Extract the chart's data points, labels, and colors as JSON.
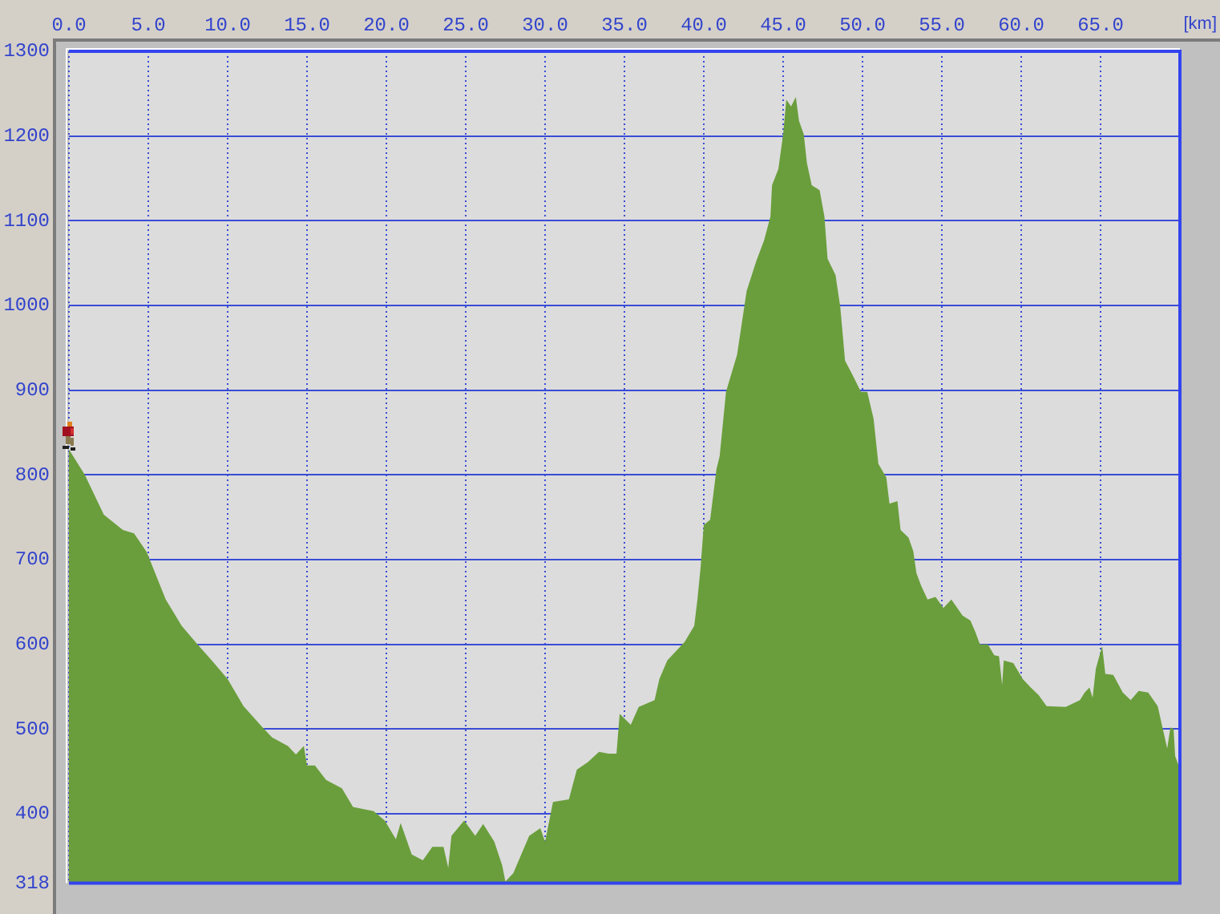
{
  "chart_data": {
    "type": "area",
    "xlabel": "[km]",
    "x": [
      0,
      1.0,
      2.2,
      3.4,
      4.1,
      4.9,
      6.1,
      7.1,
      8.1,
      9.0,
      10.0,
      11.0,
      12.2,
      12.8,
      13.8,
      14.3,
      14.8,
      15.0,
      15.5,
      16.2,
      17.2,
      17.9,
      19.2,
      19.9,
      20.6,
      20.9,
      21.6,
      22.3,
      22.9,
      23.6,
      23.9,
      24.1,
      24.9,
      25.6,
      26.1,
      26.8,
      27.3,
      27.5,
      28.0,
      29.0,
      29.7,
      30.0,
      30.5,
      31.5,
      32.0,
      32.7,
      33.4,
      34.0,
      34.5,
      34.7,
      35.4,
      35.9,
      36.4,
      36.9,
      37.2,
      37.7,
      38.8,
      39.4,
      39.6,
      39.8,
      40.0,
      40.4,
      40.8,
      41.0,
      41.4,
      42.1,
      42.7,
      43.3,
      43.8,
      44.2,
      44.3,
      44.7,
      45.0,
      45.2,
      45.5,
      45.8,
      46.0,
      46.3,
      46.5,
      46.8,
      47.3,
      47.6,
      47.8,
      48.3,
      48.6,
      48.9,
      49.4,
      49.9,
      50.3,
      50.7,
      51.0,
      51.5,
      51.7,
      52.2,
      52.4,
      52.9,
      53.2,
      53.4,
      53.7,
      54.1,
      54.6,
      55.1,
      55.6,
      56.3,
      56.8,
      57.1,
      57.4,
      57.9,
      58.3,
      58.6,
      58.8,
      58.9,
      59.5,
      60.1,
      60.6,
      61.1,
      61.6,
      62.8,
      63.7,
      64.0,
      64.3,
      64.5,
      64.7,
      65.1,
      65.3,
      65.8,
      66.4,
      66.9,
      67.4,
      68.0,
      68.6,
      68.9,
      69.2,
      69.4,
      69.6,
      69.7,
      69.9
    ],
    "values": [
      830,
      800,
      753,
      735,
      731,
      709,
      653,
      622,
      600,
      581,
      559,
      527,
      502,
      490,
      480,
      470,
      480,
      457,
      457,
      440,
      430,
      408,
      403,
      392,
      370,
      389,
      352,
      345,
      361,
      361,
      336,
      374,
      392,
      374,
      388,
      367,
      339,
      320,
      330,
      374,
      383,
      367,
      414,
      417,
      452,
      461,
      473,
      471,
      471,
      518,
      505,
      526,
      530,
      534,
      559,
      581,
      603,
      622,
      653,
      691,
      741,
      747,
      807,
      822,
      898,
      942,
      1017,
      1052,
      1077,
      1105,
      1142,
      1161,
      1202,
      1243,
      1235,
      1246,
      1218,
      1202,
      1168,
      1142,
      1136,
      1105,
      1055,
      1036,
      998,
      935,
      917,
      898,
      898,
      866,
      813,
      797,
      766,
      769,
      735,
      726,
      710,
      684,
      669,
      653,
      656,
      643,
      653,
      634,
      628,
      615,
      600,
      600,
      587,
      586,
      552,
      581,
      578,
      559,
      549,
      540,
      527,
      526,
      534,
      543,
      549,
      537,
      571,
      598,
      565,
      564,
      543,
      534,
      545,
      543,
      527,
      502,
      477,
      502,
      500,
      468,
      458
    ],
    "color": "#6a9e3c",
    "xlim": [
      0,
      70
    ],
    "xticks": [
      {
        "value": 0,
        "label": "0.0"
      },
      {
        "value": 5,
        "label": "5.0"
      },
      {
        "value": 10,
        "label": "10.0"
      },
      {
        "value": 15,
        "label": "15.0"
      },
      {
        "value": 20,
        "label": "20.0"
      },
      {
        "value": 25,
        "label": "25.0"
      },
      {
        "value": 30,
        "label": "30.0"
      },
      {
        "value": 35,
        "label": "35.0"
      },
      {
        "value": 40,
        "label": "40.0"
      },
      {
        "value": 45,
        "label": "45.0"
      },
      {
        "value": 50,
        "label": "50.0"
      },
      {
        "value": 55,
        "label": "55.0"
      },
      {
        "value": 60,
        "label": "60.0"
      },
      {
        "value": 65,
        "label": "65.0"
      }
    ],
    "ylim": [
      318,
      1300
    ],
    "yticks": [
      318,
      400,
      500,
      600,
      700,
      800,
      900,
      1000,
      1100,
      1200,
      1300
    ],
    "grid": true
  }
}
